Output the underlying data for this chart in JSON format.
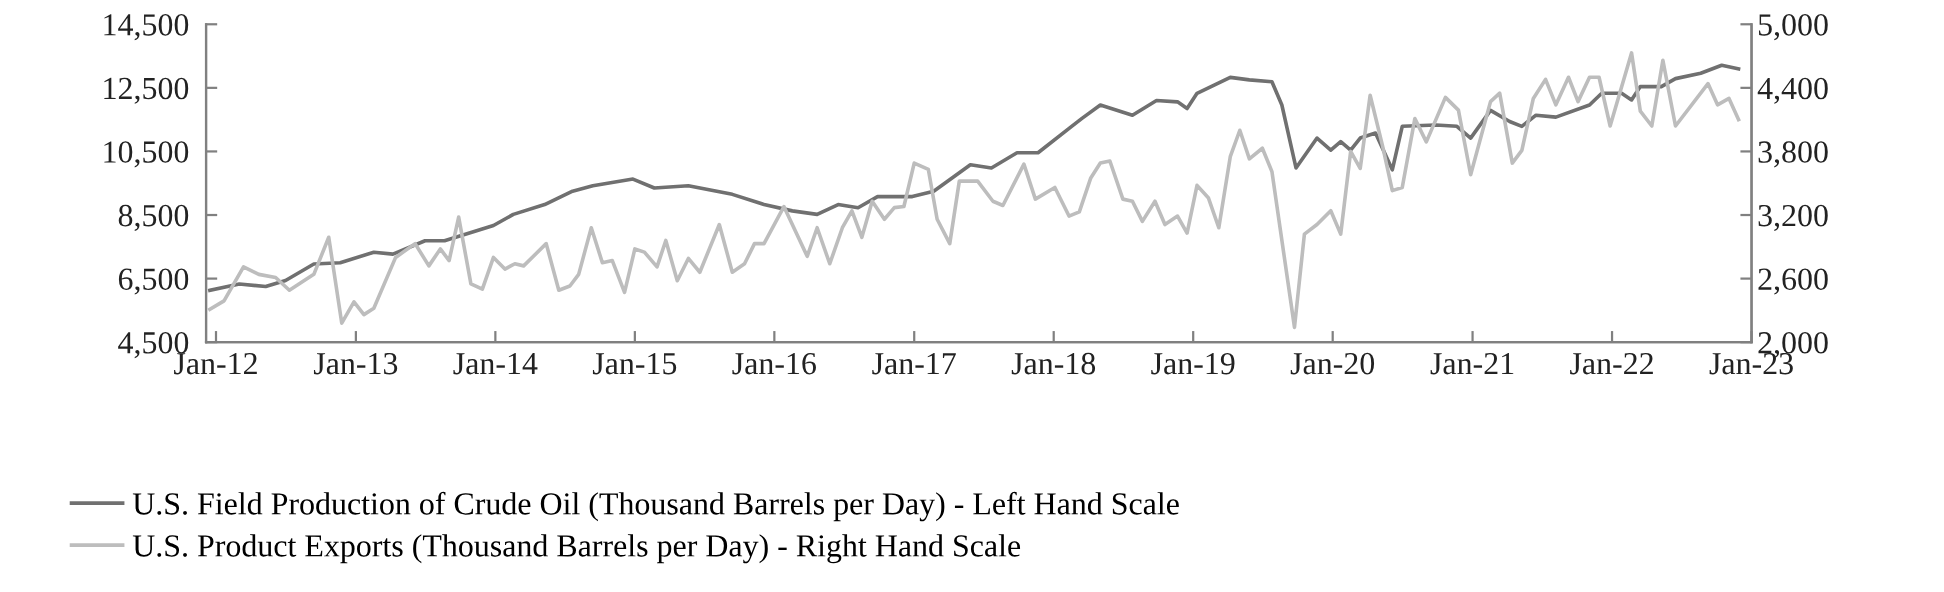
{
  "chart_data": {
    "type": "line",
    "xlim": [
      "2011-12-06",
      "2023-01-01"
    ],
    "xticks": [
      {
        "value": "2012-01-01",
        "label": "Jan-12"
      },
      {
        "value": "2013-01-01",
        "label": "Jan-13"
      },
      {
        "value": "2014-01-01",
        "label": "Jan-14"
      },
      {
        "value": "2015-01-01",
        "label": "Jan-15"
      },
      {
        "value": "2016-01-01",
        "label": "Jan-16"
      },
      {
        "value": "2017-01-01",
        "label": "Jan-17"
      },
      {
        "value": "2018-01-01",
        "label": "Jan-18"
      },
      {
        "value": "2019-01-01",
        "label": "Jan-19"
      },
      {
        "value": "2020-01-01",
        "label": "Jan-20"
      },
      {
        "value": "2021-01-01",
        "label": "Jan-21"
      },
      {
        "value": "2022-01-01",
        "label": "Jan-22"
      },
      {
        "value": "2023-01-01",
        "label": "Jan-23"
      }
    ],
    "ylim": [
      4500,
      14500
    ],
    "yticks": [
      {
        "value": 4500,
        "label": "4,500"
      },
      {
        "value": 6500,
        "label": "6,500"
      },
      {
        "value": 8500,
        "label": "8,500"
      },
      {
        "value": 10500,
        "label": "10,500"
      },
      {
        "value": 12500,
        "label": "12,500"
      },
      {
        "value": 14500,
        "label": "14,500"
      }
    ],
    "y2lim": [
      2000,
      5000
    ],
    "y2ticks": [
      {
        "value": 2000,
        "label": "2,000"
      },
      {
        "value": 2600,
        "label": "2,600"
      },
      {
        "value": 3200,
        "label": "3,200"
      },
      {
        "value": 3800,
        "label": "3,800"
      },
      {
        "value": 4400,
        "label": "4,400"
      },
      {
        "value": 5000,
        "label": "5,000"
      }
    ],
    "grid": false,
    "legend": "bottom",
    "marker": "none",
    "line_style": "solid",
    "series": [
      {
        "name": "U.S. Field Production of Crude Oil (Thousand Barrels per Day) - Left Hand Scale",
        "color": "#707070",
        "x": [
          "2011-12-16",
          "2012-03-02",
          "2012-05-10",
          "2012-07-01",
          "2012-09-13",
          "2012-11-21",
          "2013-02-17",
          "2013-04-08",
          "2013-07-01",
          "2013-08-21",
          "2013-12-27",
          "2014-02-17",
          "2014-05-10",
          "2014-07-22",
          "2014-09-13",
          "2014-12-27",
          "2015-02-21",
          "2015-05-21",
          "2015-09-13",
          "2015-12-05",
          "2016-02-17",
          "2016-04-22",
          "2016-06-16",
          "2016-08-07",
          "2016-09-27",
          "2016-12-27",
          "2017-02-21",
          "2017-05-28",
          "2017-07-22",
          "2017-09-27",
          "2017-11-21",
          "2018-02-17",
          "2018-03-16",
          "2018-05-03",
          "2018-07-26",
          "2018-09-27",
          "2018-11-21",
          "2018-12-16",
          "2019-01-11",
          "2019-04-08",
          "2019-05-28",
          "2019-07-26",
          "2019-08-21",
          "2019-09-27",
          "2019-11-21",
          "2019-12-27",
          "2020-01-22",
          "2020-02-17",
          "2020-03-13",
          "2020-04-22",
          "2020-06-05",
          "2020-07-01",
          "2020-09-27",
          "2020-11-21",
          "2020-12-27",
          "2021-02-17",
          "2021-04-08",
          "2021-05-10",
          "2021-06-16",
          "2021-08-07",
          "2021-11-03",
          "2021-12-05",
          "2022-01-26",
          "2022-02-21",
          "2022-03-16",
          "2022-05-10",
          "2022-06-16",
          "2022-08-21",
          "2022-10-15",
          "2022-11-28"
        ],
        "values": [
          6130,
          6330,
          6250,
          6440,
          6960,
          7000,
          7330,
          7270,
          7690,
          7690,
          8170,
          8520,
          8830,
          9250,
          9420,
          9630,
          9350,
          9420,
          9150,
          8830,
          8630,
          8520,
          8830,
          8730,
          9080,
          9080,
          9250,
          10080,
          9980,
          10460,
          10460,
          11290,
          11540,
          11960,
          11640,
          12100,
          12060,
          11850,
          12330,
          12830,
          12750,
          12690,
          11960,
          9980,
          10920,
          10540,
          10810,
          10540,
          10920,
          11080,
          9920,
          11290,
          11330,
          11290,
          10920,
          11790,
          11440,
          11290,
          11640,
          11580,
          11960,
          12330,
          12330,
          12120,
          12540,
          12540,
          12790,
          12960,
          13210,
          13100
        ]
      },
      {
        "name": "U.S. Product Exports (Thousand Barrels per Day) - Right Hand Scale",
        "color": "#bdbdbd",
        "axis": "y2",
        "x": [
          "2011-12-16",
          "2012-01-22",
          "2012-03-13",
          "2012-04-22",
          "2012-06-05",
          "2012-07-11",
          "2012-09-13",
          "2012-10-22",
          "2012-11-25",
          "2012-12-27",
          "2013-01-22",
          "2013-02-17",
          "2013-04-15",
          "2013-06-05",
          "2013-07-11",
          "2013-08-10",
          "2013-09-02",
          "2013-09-27",
          "2013-10-29",
          "2013-11-28",
          "2013-12-27",
          "2014-01-26",
          "2014-02-21",
          "2014-03-16",
          "2014-05-14",
          "2014-06-16",
          "2014-07-15",
          "2014-08-07",
          "2014-09-09",
          "2014-10-08",
          "2014-11-03",
          "2014-12-05",
          "2015-01-01",
          "2015-01-26",
          "2015-02-28",
          "2015-03-23",
          "2015-04-22",
          "2015-05-21",
          "2015-06-20",
          "2015-08-10",
          "2015-09-13",
          "2015-10-15",
          "2015-11-10",
          "2015-12-05",
          "2016-01-26",
          "2016-03-27",
          "2016-04-22",
          "2016-05-25",
          "2016-06-27",
          "2016-07-22",
          "2016-08-17",
          "2016-09-13",
          "2016-10-15",
          "2016-11-10",
          "2016-12-05",
          "2017-01-01",
          "2017-02-07",
          "2017-03-02",
          "2017-04-04",
          "2017-04-29",
          "2017-06-16",
          "2017-07-26",
          "2017-08-21",
          "2017-10-15",
          "2017-11-14",
          "2018-01-04",
          "2018-02-10",
          "2018-03-09",
          "2018-04-08",
          "2018-05-03",
          "2018-05-28",
          "2018-07-01",
          "2018-07-26",
          "2018-08-21",
          "2018-09-23",
          "2018-10-19",
          "2018-11-21",
          "2018-12-16",
          "2019-01-11",
          "2019-02-10",
          "2019-03-09",
          "2019-04-08",
          "2019-05-03",
          "2019-05-28",
          "2019-07-01",
          "2019-07-26",
          "2019-09-23",
          "2019-10-19",
          "2019-11-21",
          "2019-12-27",
          "2020-01-22",
          "2020-02-17",
          "2020-03-13",
          "2020-04-08",
          "2020-05-10",
          "2020-06-05",
          "2020-07-01",
          "2020-08-03",
          "2020-09-02",
          "2020-10-22",
          "2020-11-25",
          "2020-12-27",
          "2021-02-17",
          "2021-03-13",
          "2021-04-15",
          "2021-05-10",
          "2021-06-09",
          "2021-07-11",
          "2021-08-07",
          "2021-09-09",
          "2021-10-04",
          "2021-11-03",
          "2021-11-28",
          "2021-12-27",
          "2022-02-21",
          "2022-03-16",
          "2022-04-15",
          "2022-05-14",
          "2022-06-16",
          "2022-09-09",
          "2022-10-04",
          "2022-11-03",
          "2022-11-28"
        ],
        "values": [
          2310,
          2390,
          2710,
          2640,
          2610,
          2490,
          2640,
          2990,
          2180,
          2380,
          2260,
          2320,
          2800,
          2930,
          2720,
          2880,
          2770,
          3180,
          2550,
          2500,
          2800,
          2690,
          2740,
          2720,
          2930,
          2490,
          2530,
          2640,
          3080,
          2750,
          2770,
          2470,
          2880,
          2850,
          2710,
          2960,
          2580,
          2790,
          2660,
          3110,
          2660,
          2740,
          2930,
          2930,
          3280,
          2810,
          3080,
          2740,
          3080,
          3240,
          2990,
          3330,
          3160,
          3270,
          3280,
          3690,
          3630,
          3160,
          2930,
          3520,
          3520,
          3330,
          3290,
          3680,
          3350,
          3460,
          3190,
          3230,
          3550,
          3690,
          3710,
          3350,
          3330,
          3140,
          3330,
          3110,
          3190,
          3030,
          3480,
          3360,
          3080,
          3750,
          4000,
          3730,
          3830,
          3610,
          2140,
          3020,
          3110,
          3240,
          3020,
          3800,
          3640,
          4330,
          3860,
          3430,
          3460,
          4110,
          3890,
          4310,
          4190,
          3580,
          4270,
          4350,
          3690,
          3810,
          4300,
          4480,
          4240,
          4500,
          4270,
          4500,
          4500,
          4040,
          4730,
          4180,
          4040,
          4660,
          4040,
          4440,
          4240,
          4300,
          4100
        ]
      }
    ]
  }
}
